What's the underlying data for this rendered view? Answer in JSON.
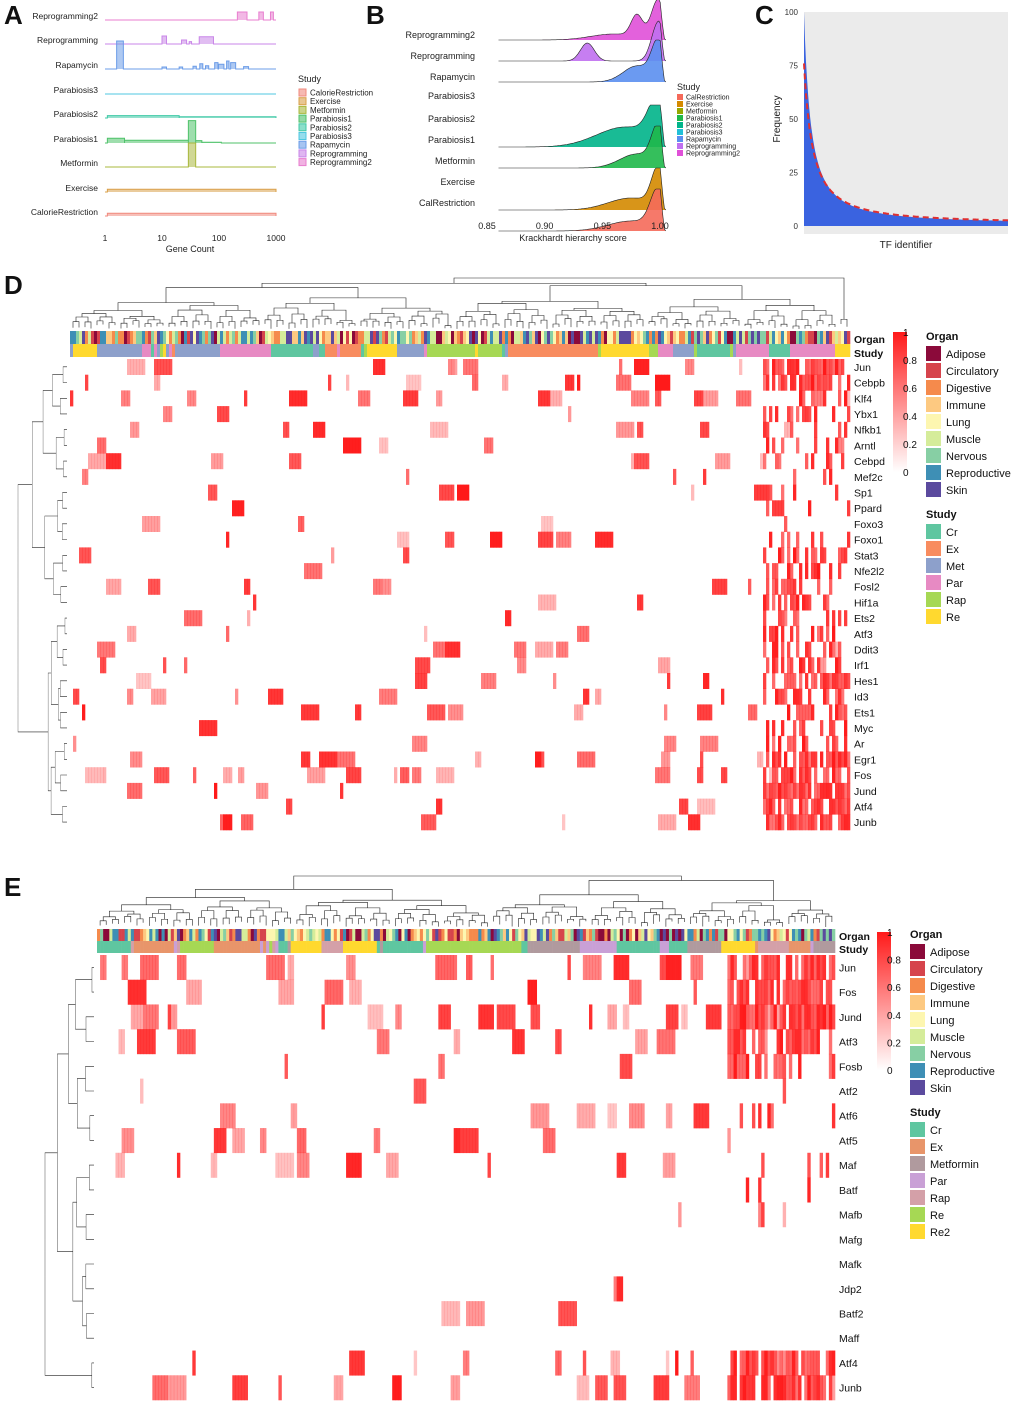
{
  "panel_labels": {
    "a": "A",
    "b": "B",
    "c": "C",
    "d": "D",
    "e": "E"
  },
  "chart_data": [
    {
      "panel": "A",
      "type": "area",
      "xlabel": "Gene Count",
      "xscale": "log",
      "xticks": [
        1,
        10,
        100,
        1000
      ],
      "xtick_labels": [
        "1",
        "10",
        "100",
        "1000"
      ],
      "xlim": [
        1,
        1000
      ],
      "legend_title": "Study",
      "legend_position": "right",
      "legend": [
        "CalorieRestriction",
        "Exercise",
        "Metformin",
        "Parabiosis1",
        "Parabiosis2",
        "Parabiosis3",
        "Rapamycin",
        "Reprogramming",
        "Reprogramming2"
      ],
      "series": [
        {
          "name": "Reprogramming2",
          "color": "#e87ecf",
          "hist": [
            [
              210,
              310,
              1.0
            ],
            [
              500,
              600,
              1.0
            ],
            [
              800,
              900,
              1.0
            ]
          ]
        },
        {
          "name": "Reprogramming",
          "color": "#c986e8",
          "hist": [
            [
              10,
              12,
              1.0
            ],
            [
              22,
              27,
              0.5
            ],
            [
              30,
              33,
              0.3
            ],
            [
              45,
              80,
              0.9
            ]
          ]
        },
        {
          "name": "Rapamycin",
          "color": "#6b9ce8",
          "hist": [
            [
              1.6,
              2.1,
              3.5
            ],
            [
              10,
              12,
              0.25
            ],
            [
              20,
              23,
              0.25
            ],
            [
              35,
              40,
              0.35
            ],
            [
              46,
              52,
              0.65
            ],
            [
              58,
              66,
              0.4
            ],
            [
              84,
              96,
              0.8
            ],
            [
              98,
              122,
              0.6
            ],
            [
              136,
              150,
              1.0
            ],
            [
              160,
              196,
              0.8
            ],
            [
              270,
              330,
              0.3
            ]
          ]
        },
        {
          "name": "Parabiosis3",
          "color": "#4fc7e0",
          "hist": []
        },
        {
          "name": "Parabiosis2",
          "color": "#3fc9a6",
          "hist": [
            [
              1.1,
              20,
              0.3
            ],
            [
              20,
              1000,
              0.15
            ]
          ]
        },
        {
          "name": "Parabiosis1",
          "color": "#4fc26a",
          "hist": [
            [
              1.1,
              2.2,
              0.6
            ],
            [
              2.2,
              29,
              0.35
            ],
            [
              29,
              39,
              2.8
            ],
            [
              39,
              50,
              0.3
            ],
            [
              50,
              110,
              0.1
            ]
          ]
        },
        {
          "name": "Metformin",
          "color": "#a9b83d",
          "hist": [
            [
              29,
              39,
              3.0
            ]
          ]
        },
        {
          "name": "Exercise",
          "color": "#d9a04a",
          "hist": [
            [
              1.1,
              1000,
              0.35
            ]
          ]
        },
        {
          "name": "CalorieRestriction",
          "color": "#f08a7e",
          "hist": [
            [
              1.1,
              1000,
              0.35
            ]
          ]
        }
      ]
    },
    {
      "panel": "B",
      "type": "area",
      "xlabel": "Krackhardt hierarchy score",
      "xlim": [
        0.85,
        1.0
      ],
      "xticks": [
        0.85,
        0.9,
        0.95,
        1.0
      ],
      "xtick_labels": [
        "0.85",
        "0.90",
        "0.95",
        "1.00"
      ],
      "legend_title": "Study",
      "legend_position": "right",
      "legend": [
        "CalRestriction",
        "Exercise",
        "Metformin",
        "Parabiosis1",
        "Parabiosis2",
        "Parabiosis3",
        "Rapamycin",
        "Reprogramming",
        "Reprogramming2"
      ],
      "series": [
        {
          "name": "Reprogramming2",
          "color": "#e050d8",
          "peaks": [
            [
              0.9985,
              0.006,
              1.0
            ],
            [
              0.98,
              0.005,
              0.55
            ],
            [
              0.96,
              0.02,
              0.15
            ]
          ]
        },
        {
          "name": "Reprogramming",
          "color": "#c070f0",
          "peaks": [
            [
              0.999,
              0.006,
              1.0
            ],
            [
              0.937,
              0.006,
              0.45
            ]
          ]
        },
        {
          "name": "Rapamycin",
          "color": "#5b8ff0",
          "peaks": [
            [
              0.999,
              0.006,
              1.0
            ],
            [
              0.98,
              0.012,
              0.4
            ]
          ]
        },
        {
          "name": "Parabiosis3",
          "color": "#20c0d8",
          "peaks": []
        },
        {
          "name": "Parabiosis2",
          "color": "#00b48a",
          "peaks": [
            [
              0.998,
              0.008,
              1.0
            ],
            [
              0.97,
              0.025,
              0.5
            ]
          ]
        },
        {
          "name": "Parabiosis1",
          "color": "#1fb84a",
          "peaks": [
            [
              0.999,
              0.006,
              1.0
            ],
            [
              0.98,
              0.015,
              0.35
            ]
          ]
        },
        {
          "name": "Metformin",
          "color": "#96a800",
          "peaks": []
        },
        {
          "name": "Exercise",
          "color": "#d48a00",
          "peaks": [
            [
              0.999,
              0.006,
              1.0
            ],
            [
              0.975,
              0.02,
              0.3
            ]
          ]
        },
        {
          "name": "CalRestriction",
          "color": "#f56a5a",
          "peaks": [
            [
              0.999,
              0.007,
              1.0
            ],
            [
              0.975,
              0.02,
              0.25
            ]
          ]
        }
      ]
    },
    {
      "panel": "C",
      "type": "area",
      "xlabel": "TF identifier",
      "ylabel": "Frequency",
      "ylim": [
        0,
        100
      ],
      "yticks": [
        0,
        25,
        50,
        75,
        100
      ],
      "ytick_labels": [
        "0",
        "25",
        "50",
        "75",
        "100"
      ],
      "fill_color": "#3a63e0",
      "fit_color": "#e03030",
      "background": "#ebebeb",
      "decay_start": 100,
      "fit_start": 76,
      "tail": 1
    },
    {
      "panel": "D",
      "type": "heatmap",
      "rows": [
        "Jun",
        "Cebpb",
        "Klf4",
        "Ybx1",
        "Nfkb1",
        "Arntl",
        "Cebpd",
        "Mef2c",
        "Sp1",
        "Ppard",
        "Foxo3",
        "Foxo1",
        "Stat3",
        "Nfe2l2",
        "Fosl2",
        "Hif1a",
        "Ets2",
        "Atf3",
        "Ddit3",
        "Irf1",
        "Hes1",
        "Id3",
        "Ets1",
        "Myc",
        "Ar",
        "Egr1",
        "Fos",
        "Jund",
        "Atf4",
        "Junb"
      ],
      "annotation_rows": [
        "Organ",
        "Study"
      ],
      "color_scale": {
        "ticks": [
          "1",
          "0.8",
          "0.6",
          "0.4",
          "0.2",
          "0"
        ],
        "low": "#ffffff",
        "high": "#ff1a1a"
      },
      "organ_legend": {
        "title": "Organ",
        "items": [
          {
            "label": "Adipose",
            "color": "#8b0a3a"
          },
          {
            "label": "Circulatory",
            "color": "#d6444c"
          },
          {
            "label": "Digestive",
            "color": "#f58a4c"
          },
          {
            "label": "Immune",
            "color": "#fdc981"
          },
          {
            "label": "Lung",
            "color": "#fdf6b0"
          },
          {
            "label": "Muscle",
            "color": "#d5ec9a"
          },
          {
            "label": "Nervous",
            "color": "#87cfa4"
          },
          {
            "label": "Reproductive",
            "color": "#3e8fb5"
          },
          {
            "label": "Skin",
            "color": "#5b4a9e"
          }
        ]
      },
      "study_legend": {
        "title": "Study",
        "items": [
          {
            "label": "Cr",
            "color": "#5fc6a0"
          },
          {
            "label": "Ex",
            "color": "#f88c5f"
          },
          {
            "label": "Met",
            "color": "#8da0cb"
          },
          {
            "label": "Par",
            "color": "#e78ac3"
          },
          {
            "label": "Rap",
            "color": "#a6d854"
          },
          {
            "label": "Re",
            "color": "#ffd92f"
          }
        ]
      }
    },
    {
      "panel": "E",
      "type": "heatmap",
      "rows": [
        "Jun",
        "Fos",
        "Jund",
        "Atf3",
        "Fosb",
        "Atf2",
        "Atf6",
        "Atf5",
        "Maf",
        "Batf",
        "Mafb",
        "Mafg",
        "Mafk",
        "Jdp2",
        "Batf2",
        "Maff",
        "Atf4",
        "Junb"
      ],
      "annotation_rows": [
        "Organ",
        "Study"
      ],
      "color_scale": {
        "ticks": [
          "1",
          "0.8",
          "0.6",
          "0.4",
          "0.2",
          "0"
        ],
        "low": "#ffffff",
        "high": "#ff1a1a"
      },
      "organ_legend": {
        "title": "Organ",
        "items": [
          {
            "label": "Adipose",
            "color": "#8b0a3a"
          },
          {
            "label": "Circulatory",
            "color": "#d6444c"
          },
          {
            "label": "Digestive",
            "color": "#f58a4c"
          },
          {
            "label": "Immune",
            "color": "#fdc981"
          },
          {
            "label": "Lung",
            "color": "#fdf6b0"
          },
          {
            "label": "Muscle",
            "color": "#d5ec9a"
          },
          {
            "label": "Nervous",
            "color": "#87cfa4"
          },
          {
            "label": "Reproductive",
            "color": "#3e8fb5"
          },
          {
            "label": "Skin",
            "color": "#5b4a9e"
          }
        ]
      },
      "study_legend": {
        "title": "Study",
        "items": [
          {
            "label": "Cr",
            "color": "#5fc6a0"
          },
          {
            "label": "Ex",
            "color": "#e8956a"
          },
          {
            "label": "Metformin",
            "color": "#b09a9e"
          },
          {
            "label": "Par",
            "color": "#c9a0d6"
          },
          {
            "label": "Rap",
            "color": "#d4a0a8"
          },
          {
            "label": "Re",
            "color": "#a6d854"
          },
          {
            "label": "Re2",
            "color": "#ffd92f"
          }
        ]
      }
    }
  ]
}
